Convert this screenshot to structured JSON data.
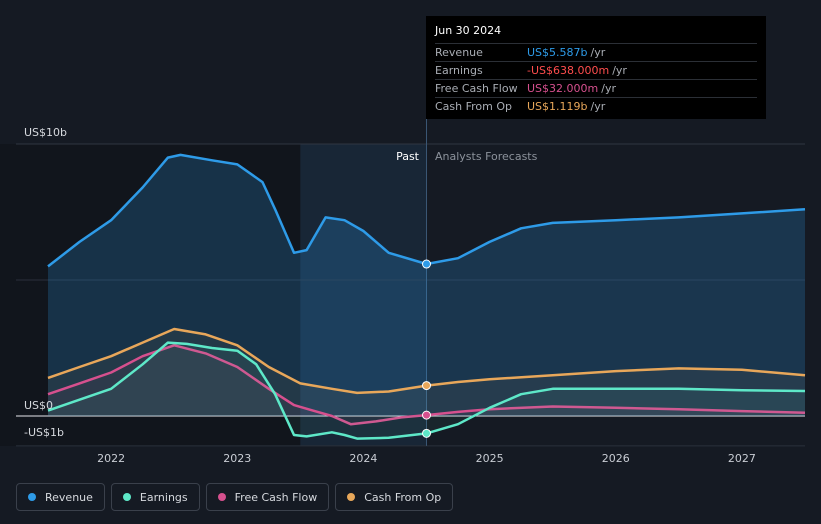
{
  "chart_data": {
    "type": "area",
    "y_axis": {
      "top_label": "US$10b",
      "zero_label": "US$0",
      "bottom_label": "-US$1b",
      "ylim": [
        -1.1,
        10.6
      ]
    },
    "x_axis": {
      "ticks": [
        "2022",
        "2023",
        "2024",
        "2025",
        "2026",
        "2027"
      ],
      "xlim": [
        2021.5,
        2027.5
      ]
    },
    "divider_date": 2024.5,
    "past_label": "Past",
    "forecast_label": "Analysts Forecasts",
    "grid": true,
    "series": [
      {
        "name": "Revenue",
        "color": "#2e9be8",
        "fill": true,
        "points": [
          [
            2021.5,
            5.5
          ],
          [
            2021.75,
            6.4
          ],
          [
            2022.0,
            7.2
          ],
          [
            2022.25,
            8.4
          ],
          [
            2022.45,
            9.5
          ],
          [
            2022.55,
            9.6
          ],
          [
            2022.8,
            9.4
          ],
          [
            2023.0,
            9.25
          ],
          [
            2023.2,
            8.6
          ],
          [
            2023.3,
            7.6
          ],
          [
            2023.45,
            6.0
          ],
          [
            2023.55,
            6.1
          ],
          [
            2023.7,
            7.3
          ],
          [
            2023.85,
            7.2
          ],
          [
            2024.0,
            6.8
          ],
          [
            2024.2,
            6.0
          ],
          [
            2024.5,
            5.587
          ],
          [
            2024.75,
            5.8
          ],
          [
            2025.0,
            6.4
          ],
          [
            2025.25,
            6.9
          ],
          [
            2025.5,
            7.1
          ],
          [
            2026.0,
            7.2
          ],
          [
            2026.5,
            7.3
          ],
          [
            2027.0,
            7.45
          ],
          [
            2027.5,
            7.6
          ]
        ]
      },
      {
        "name": "Earnings",
        "color": "#5ee8c8",
        "fill": false,
        "points": [
          [
            2021.5,
            0.2
          ],
          [
            2021.75,
            0.6
          ],
          [
            2022.0,
            1.0
          ],
          [
            2022.25,
            1.9
          ],
          [
            2022.45,
            2.7
          ],
          [
            2022.6,
            2.65
          ],
          [
            2022.8,
            2.5
          ],
          [
            2023.0,
            2.4
          ],
          [
            2023.15,
            1.9
          ],
          [
            2023.3,
            0.8
          ],
          [
            2023.45,
            -0.7
          ],
          [
            2023.55,
            -0.75
          ],
          [
            2023.75,
            -0.6
          ],
          [
            2023.85,
            -0.7
          ],
          [
            2023.95,
            -0.83
          ],
          [
            2024.2,
            -0.8
          ],
          [
            2024.5,
            -0.638
          ],
          [
            2024.75,
            -0.3
          ],
          [
            2025.0,
            0.3
          ],
          [
            2025.25,
            0.8
          ],
          [
            2025.5,
            1.0
          ],
          [
            2026.0,
            1.0
          ],
          [
            2026.5,
            1.0
          ],
          [
            2027.0,
            0.95
          ],
          [
            2027.5,
            0.92
          ]
        ]
      },
      {
        "name": "Free Cash Flow",
        "color": "#d6508e",
        "fill": false,
        "points": [
          [
            2021.5,
            0.8
          ],
          [
            2021.75,
            1.2
          ],
          [
            2022.0,
            1.6
          ],
          [
            2022.25,
            2.2
          ],
          [
            2022.5,
            2.6
          ],
          [
            2022.75,
            2.3
          ],
          [
            2023.0,
            1.8
          ],
          [
            2023.25,
            1.0
          ],
          [
            2023.45,
            0.4
          ],
          [
            2023.6,
            0.2
          ],
          [
            2023.75,
            0.0
          ],
          [
            2023.9,
            -0.3
          ],
          [
            2024.1,
            -0.2
          ],
          [
            2024.3,
            -0.05
          ],
          [
            2024.5,
            0.032
          ],
          [
            2024.75,
            0.15
          ],
          [
            2025.0,
            0.25
          ],
          [
            2025.5,
            0.35
          ],
          [
            2026.0,
            0.3
          ],
          [
            2026.5,
            0.25
          ],
          [
            2027.0,
            0.18
          ],
          [
            2027.5,
            0.12
          ]
        ]
      },
      {
        "name": "Cash From Op",
        "color": "#e8a75a",
        "fill": false,
        "points": [
          [
            2021.5,
            1.4
          ],
          [
            2021.75,
            1.8
          ],
          [
            2022.0,
            2.2
          ],
          [
            2022.25,
            2.7
          ],
          [
            2022.5,
            3.2
          ],
          [
            2022.75,
            3.0
          ],
          [
            2023.0,
            2.6
          ],
          [
            2023.25,
            1.8
          ],
          [
            2023.5,
            1.2
          ],
          [
            2023.75,
            1.0
          ],
          [
            2023.95,
            0.85
          ],
          [
            2024.2,
            0.9
          ],
          [
            2024.5,
            1.119
          ],
          [
            2024.75,
            1.25
          ],
          [
            2025.0,
            1.35
          ],
          [
            2025.5,
            1.5
          ],
          [
            2026.0,
            1.65
          ],
          [
            2026.5,
            1.75
          ],
          [
            2027.0,
            1.7
          ],
          [
            2027.5,
            1.5
          ]
        ]
      }
    ]
  },
  "tooltip": {
    "date": "Jun 30 2024",
    "rows": [
      {
        "label": "Revenue",
        "value": "US$5.587b",
        "unit": "/yr",
        "color": "#2e9be8"
      },
      {
        "label": "Earnings",
        "value": "-US$638.000m",
        "unit": "/yr",
        "color": "#ff4d4d"
      },
      {
        "label": "Free Cash Flow",
        "value": "US$32.000m",
        "unit": "/yr",
        "color": "#d6508e"
      },
      {
        "label": "Cash From Op",
        "value": "US$1.119b",
        "unit": "/yr",
        "color": "#e8a75a"
      }
    ]
  },
  "legend": [
    {
      "label": "Revenue",
      "color": "#2e9be8"
    },
    {
      "label": "Earnings",
      "color": "#5ee8c8"
    },
    {
      "label": "Free Cash Flow",
      "color": "#d6508e"
    },
    {
      "label": "Cash From Op",
      "color": "#e8a75a"
    }
  ]
}
